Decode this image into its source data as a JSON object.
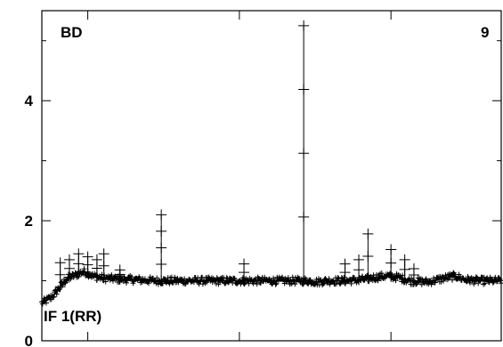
{
  "chart_data": {
    "type": "scatter",
    "title": "",
    "xlabel": "",
    "ylabel": "",
    "ylim": [
      0,
      5.5
    ],
    "xlim": [
      0,
      1
    ],
    "y_ticks": [
      0,
      2,
      4
    ],
    "y_minor_ticks": [
      1,
      3,
      5
    ],
    "x_ticks": [
      0.1,
      0.43,
      0.76
    ],
    "annotations": {
      "top_left": "BD",
      "top_right": "9",
      "bottom_left": "IF 1(RR)"
    },
    "marker": "plus",
    "series": [
      {
        "values": [
          [
            0.0,
            0.63
          ],
          [
            0.01,
            0.67
          ],
          [
            0.02,
            0.72
          ],
          [
            0.03,
            0.8
          ],
          [
            0.04,
            0.9
          ],
          [
            0.05,
            1.0
          ],
          [
            0.06,
            1.06
          ],
          [
            0.07,
            1.08
          ],
          [
            0.08,
            1.12
          ],
          [
            0.09,
            1.15
          ],
          [
            0.1,
            1.13
          ],
          [
            0.11,
            1.08
          ],
          [
            0.13,
            1.05
          ],
          [
            0.16,
            1.03
          ],
          [
            0.2,
            1.02
          ],
          [
            0.25,
            1.0
          ],
          [
            0.3,
            1.0
          ],
          [
            0.35,
            1.0
          ],
          [
            0.4,
            1.0
          ],
          [
            0.45,
            1.0
          ],
          [
            0.5,
            1.0
          ],
          [
            0.55,
            1.0
          ],
          [
            0.58,
            1.0
          ],
          [
            0.6,
            0.98
          ],
          [
            0.62,
            1.0
          ],
          [
            0.66,
            1.0
          ],
          [
            0.7,
            1.02
          ],
          [
            0.72,
            1.05
          ],
          [
            0.75,
            1.08
          ],
          [
            0.78,
            1.05
          ],
          [
            0.8,
            1.0
          ],
          [
            0.84,
            0.98
          ],
          [
            0.88,
            1.05
          ],
          [
            0.9,
            1.08
          ],
          [
            0.92,
            1.02
          ],
          [
            0.95,
            1.0
          ],
          [
            1.0,
            1.0
          ]
        ]
      }
    ],
    "spikes": [
      {
        "x": 0.04,
        "y": 1.3
      },
      {
        "x": 0.06,
        "y": 1.35
      },
      {
        "x": 0.08,
        "y": 1.45
      },
      {
        "x": 0.1,
        "y": 1.4
      },
      {
        "x": 0.12,
        "y": 1.35
      },
      {
        "x": 0.135,
        "y": 1.45
      },
      {
        "x": 0.17,
        "y": 1.18
      },
      {
        "x": 0.26,
        "y": 2.1
      },
      {
        "x": 0.44,
        "y": 1.28
      },
      {
        "x": 0.57,
        "y": 5.25
      },
      {
        "x": 0.66,
        "y": 1.28
      },
      {
        "x": 0.69,
        "y": 1.35
      },
      {
        "x": 0.71,
        "y": 1.78
      },
      {
        "x": 0.76,
        "y": 1.52
      },
      {
        "x": 0.79,
        "y": 1.35
      },
      {
        "x": 0.81,
        "y": 1.2
      }
    ]
  }
}
